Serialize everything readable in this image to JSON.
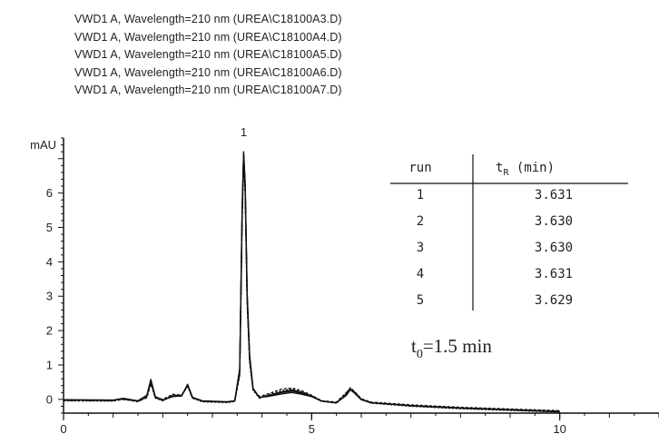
{
  "chart_data": {
    "type": "line",
    "legend_entries": [
      "VWD1 A, Wavelength=210 nm (UREA\\C18100A3.D)",
      "VWD1 A, Wavelength=210 nm (UREA\\C18100A4.D)",
      "VWD1 A, Wavelength=210 nm (UREA\\C18100A5.D)",
      "VWD1 A, Wavelength=210 nm (UREA\\C18100A6.D)",
      "VWD1 A, Wavelength=210 nm (UREA\\C18100A7.D)"
    ],
    "legend_placement": "top-left",
    "ylabel": "mAU",
    "xlim": [
      0,
      12
    ],
    "ylim": [
      -0.4,
      7.6
    ],
    "x_ticks": [
      0,
      5,
      10
    ],
    "y_ticks": [
      0,
      1,
      2,
      3,
      4,
      5,
      6
    ],
    "grid": false,
    "peak_label": {
      "text": "1",
      "x": 3.63
    },
    "series": [
      {
        "points": [
          [
            0,
            -0.02
          ],
          [
            1.0,
            -0.03
          ],
          [
            1.2,
            0.02
          ],
          [
            1.5,
            -0.05
          ],
          [
            1.68,
            0.1
          ],
          [
            1.76,
            0.55
          ],
          [
            1.85,
            0.05
          ],
          [
            2.0,
            -0.03
          ],
          [
            2.2,
            0.1
          ],
          [
            2.38,
            0.1
          ],
          [
            2.5,
            0.42
          ],
          [
            2.6,
            0.05
          ],
          [
            2.8,
            -0.06
          ],
          [
            3.3,
            -0.08
          ],
          [
            3.45,
            -0.05
          ],
          [
            3.55,
            0.8
          ],
          [
            3.6,
            5.5
          ],
          [
            3.63,
            7.15
          ],
          [
            3.66,
            6.2
          ],
          [
            3.7,
            3.0
          ],
          [
            3.75,
            1.2
          ],
          [
            3.82,
            0.3
          ],
          [
            3.95,
            0.05
          ],
          [
            4.1,
            0.1
          ],
          [
            4.4,
            0.2
          ],
          [
            4.6,
            0.24
          ],
          [
            4.8,
            0.18
          ],
          [
            5.0,
            0.1
          ],
          [
            5.2,
            -0.05
          ],
          [
            5.5,
            -0.1
          ],
          [
            5.7,
            0.15
          ],
          [
            5.78,
            0.3
          ],
          [
            5.85,
            0.22
          ],
          [
            6.0,
            0.0
          ],
          [
            6.2,
            -0.1
          ],
          [
            7.0,
            -0.18
          ],
          [
            8.0,
            -0.25
          ],
          [
            9.0,
            -0.3
          ],
          [
            10.0,
            -0.35
          ]
        ]
      },
      {
        "points": [
          [
            0,
            -0.03
          ],
          [
            1.0,
            -0.04
          ],
          [
            1.2,
            0.0
          ],
          [
            1.5,
            -0.06
          ],
          [
            1.68,
            0.05
          ],
          [
            1.76,
            0.45
          ],
          [
            1.85,
            0.06
          ],
          [
            2.0,
            0.0
          ],
          [
            2.2,
            0.15
          ],
          [
            2.38,
            0.12
          ],
          [
            2.5,
            0.38
          ],
          [
            2.6,
            0.04
          ],
          [
            2.8,
            -0.05
          ],
          [
            3.3,
            -0.08
          ],
          [
            3.45,
            -0.05
          ],
          [
            3.55,
            0.7
          ],
          [
            3.6,
            5.2
          ],
          [
            3.63,
            6.95
          ],
          [
            3.66,
            6.0
          ],
          [
            3.7,
            2.8
          ],
          [
            3.75,
            1.1
          ],
          [
            3.82,
            0.28
          ],
          [
            3.95,
            0.08
          ],
          [
            4.1,
            0.15
          ],
          [
            4.4,
            0.3
          ],
          [
            4.6,
            0.33
          ],
          [
            4.8,
            0.25
          ],
          [
            5.0,
            0.12
          ],
          [
            5.2,
            -0.04
          ],
          [
            5.5,
            -0.08
          ],
          [
            5.7,
            0.2
          ],
          [
            5.78,
            0.32
          ],
          [
            5.85,
            0.25
          ],
          [
            6.0,
            0.02
          ],
          [
            6.2,
            -0.08
          ],
          [
            7.0,
            -0.16
          ],
          [
            8.0,
            -0.23
          ],
          [
            9.0,
            -0.28
          ],
          [
            10.0,
            -0.33
          ]
        ]
      },
      {
        "points": [
          [
            0,
            -0.01
          ],
          [
            1.0,
            -0.02
          ],
          [
            1.2,
            0.03
          ],
          [
            1.5,
            -0.04
          ],
          [
            1.68,
            0.12
          ],
          [
            1.76,
            0.58
          ],
          [
            1.85,
            0.08
          ],
          [
            2.0,
            -0.02
          ],
          [
            2.2,
            0.08
          ],
          [
            2.38,
            0.1
          ],
          [
            2.5,
            0.44
          ],
          [
            2.6,
            0.06
          ],
          [
            2.8,
            -0.04
          ],
          [
            3.3,
            -0.07
          ],
          [
            3.45,
            -0.04
          ],
          [
            3.55,
            0.9
          ],
          [
            3.6,
            5.6
          ],
          [
            3.63,
            7.2
          ],
          [
            3.66,
            6.3
          ],
          [
            3.7,
            3.1
          ],
          [
            3.75,
            1.3
          ],
          [
            3.82,
            0.32
          ],
          [
            3.95,
            0.06
          ],
          [
            4.1,
            0.08
          ],
          [
            4.4,
            0.16
          ],
          [
            4.6,
            0.2
          ],
          [
            4.8,
            0.15
          ],
          [
            5.0,
            0.08
          ],
          [
            5.2,
            -0.05
          ],
          [
            5.5,
            -0.1
          ],
          [
            5.7,
            0.12
          ],
          [
            5.78,
            0.28
          ],
          [
            5.85,
            0.2
          ],
          [
            6.0,
            -0.01
          ],
          [
            6.2,
            -0.1
          ],
          [
            7.0,
            -0.19
          ],
          [
            8.0,
            -0.26
          ],
          [
            9.0,
            -0.31
          ],
          [
            10.0,
            -0.36
          ]
        ]
      },
      {
        "points": [
          [
            0,
            -0.04
          ],
          [
            1.0,
            -0.05
          ],
          [
            1.2,
            0.01
          ],
          [
            1.5,
            -0.07
          ],
          [
            1.68,
            0.08
          ],
          [
            1.76,
            0.5
          ],
          [
            1.85,
            0.04
          ],
          [
            2.0,
            -0.04
          ],
          [
            2.2,
            0.12
          ],
          [
            2.38,
            0.11
          ],
          [
            2.5,
            0.4
          ],
          [
            2.6,
            0.03
          ],
          [
            2.8,
            -0.07
          ],
          [
            3.3,
            -0.09
          ],
          [
            3.45,
            -0.06
          ],
          [
            3.55,
            0.75
          ],
          [
            3.6,
            5.35
          ],
          [
            3.63,
            7.05
          ],
          [
            3.66,
            6.1
          ],
          [
            3.7,
            2.9
          ],
          [
            3.75,
            1.15
          ],
          [
            3.82,
            0.26
          ],
          [
            3.95,
            0.03
          ],
          [
            4.1,
            0.12
          ],
          [
            4.4,
            0.25
          ],
          [
            4.6,
            0.3
          ],
          [
            4.8,
            0.22
          ],
          [
            5.0,
            0.1
          ],
          [
            5.2,
            -0.06
          ],
          [
            5.5,
            -0.11
          ],
          [
            5.7,
            0.18
          ],
          [
            5.78,
            0.34
          ],
          [
            5.85,
            0.24
          ],
          [
            6.0,
            0.0
          ],
          [
            6.2,
            -0.11
          ],
          [
            7.0,
            -0.2
          ],
          [
            8.0,
            -0.27
          ],
          [
            9.0,
            -0.32
          ],
          [
            10.0,
            -0.37
          ]
        ]
      },
      {
        "points": [
          [
            0,
            -0.02
          ],
          [
            1.0,
            -0.03
          ],
          [
            1.2,
            0.02
          ],
          [
            1.5,
            -0.05
          ],
          [
            1.68,
            0.1
          ],
          [
            1.76,
            0.52
          ],
          [
            1.85,
            0.06
          ],
          [
            2.0,
            -0.02
          ],
          [
            2.2,
            0.1
          ],
          [
            2.38,
            0.12
          ],
          [
            2.5,
            0.41
          ],
          [
            2.6,
            0.05
          ],
          [
            2.8,
            -0.05
          ],
          [
            3.3,
            -0.08
          ],
          [
            3.45,
            -0.05
          ],
          [
            3.55,
            0.85
          ],
          [
            3.6,
            5.45
          ],
          [
            3.63,
            7.1
          ],
          [
            3.66,
            6.15
          ],
          [
            3.7,
            2.95
          ],
          [
            3.75,
            1.2
          ],
          [
            3.82,
            0.3
          ],
          [
            3.95,
            0.05
          ],
          [
            4.1,
            0.1
          ],
          [
            4.4,
            0.22
          ],
          [
            4.6,
            0.27
          ],
          [
            4.8,
            0.2
          ],
          [
            5.0,
            0.1
          ],
          [
            5.2,
            -0.05
          ],
          [
            5.5,
            -0.1
          ],
          [
            5.7,
            0.16
          ],
          [
            5.78,
            0.31
          ],
          [
            5.85,
            0.22
          ],
          [
            6.0,
            0.0
          ],
          [
            6.2,
            -0.1
          ],
          [
            7.0,
            -0.18
          ],
          [
            8.0,
            -0.25
          ],
          [
            9.0,
            -0.3
          ],
          [
            10.0,
            -0.35
          ]
        ]
      }
    ],
    "inset_table": {
      "headers": [
        "run",
        "t",
        "R",
        " (min)"
      ],
      "rows": [
        [
          "1",
          "3.631"
        ],
        [
          "2",
          "3.630"
        ],
        [
          "3",
          "3.630"
        ],
        [
          "4",
          "3.631"
        ],
        [
          "5",
          "3.629"
        ]
      ]
    },
    "annotation": {
      "main": "t",
      "sub": "0",
      "rest": "=1.5 min"
    }
  },
  "colors": {
    "trace": "#111111",
    "axis": "#111111",
    "text": "#222222"
  }
}
